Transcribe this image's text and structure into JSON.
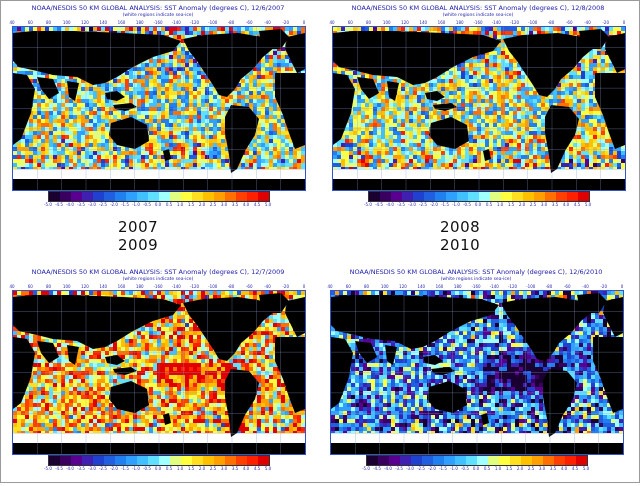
{
  "panels": [
    {
      "title": "NOAA/NESDIS 50 KM GLOBAL ANALYSIS: SST Anomaly (degrees C), 12/6/2007",
      "subtitle": "(white regions indicate sea-ice)",
      "scheme": "warm"
    },
    {
      "title": "NOAA/NESDIS 50 KM GLOBAL ANALYSIS: SST Anomaly (degrees C), 12/8/2008",
      "subtitle": "(white regions indicate sea-ice)",
      "scheme": "warm"
    },
    {
      "title": "NOAA/NESDIS 50 KM GLOBAL ANALYSIS: SST Anomaly (degrees C), 12/7/2009",
      "subtitle": "(white regions indicate sea-ice)",
      "scheme": "hot"
    },
    {
      "title": "NOAA/NESDIS 50 KM GLOBAL ANALYSIS: SST Anomaly (degrees C), 12/6/2010",
      "subtitle": "(white regions indicate sea-ice)",
      "scheme": "cool"
    }
  ],
  "year_labels": {
    "left_a": "2007",
    "left_b": "2009",
    "right_a": "2008",
    "right_b": "2010"
  },
  "lon_labels": [
    "40",
    "60",
    "80",
    "100",
    "120",
    "140",
    "160",
    "180",
    "-160",
    "-140",
    "-120",
    "-100",
    "-80",
    "-60",
    "-40",
    "-20",
    "0"
  ],
  "colorbar": {
    "ticks": [
      "-5.0",
      "-4.5",
      "-4.0",
      "-3.5",
      "-3.0",
      "-2.5",
      "-2.0",
      "-1.5",
      "-1.0",
      "-0.5",
      "0.0",
      "0.5",
      "1.0",
      "1.5",
      "2.0",
      "2.5",
      "3.0",
      "3.5",
      "4.0",
      "4.5",
      "5.0"
    ],
    "colors": [
      "#1a0030",
      "#3a0060",
      "#5a0090",
      "#4020b0",
      "#2040d0",
      "#2060e0",
      "#2080f0",
      "#30a0ff",
      "#40c0ff",
      "#60e0ff",
      "#a0ffff",
      "#e0ff80",
      "#ffff40",
      "#ffe020",
      "#ffc000",
      "#ffa000",
      "#ff7000",
      "#ff4000",
      "#ff2000",
      "#e00000"
    ],
    "land_color": "#000000",
    "ice_color": "#ffffff"
  }
}
